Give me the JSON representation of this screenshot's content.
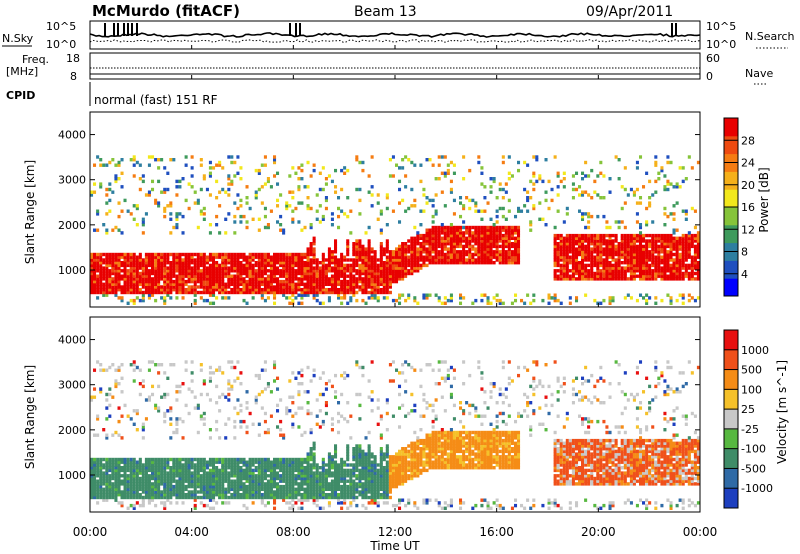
{
  "header": {
    "station": "McMurdo (fitACF)",
    "beam": "Beam 13",
    "date": "09/Apr/2011"
  },
  "top_panels": {
    "nsky_label": "N.Sky",
    "nsearch_label": "N.Search",
    "nsky_ticks": [
      "10^5",
      "10^0"
    ],
    "nsearch_ticks": [
      "10^5",
      "10^0"
    ],
    "freq_label_1": "Freq.",
    "freq_label_2": "[MHz]",
    "freq_ticks": [
      "18",
      "8"
    ],
    "nave_label": "Nave",
    "nave_ticks": [
      "60",
      "0"
    ],
    "cpid_label": "CPID",
    "cpid_value": "normal (fast) 151 RF"
  },
  "chart_data": [
    {
      "type": "heatmap",
      "name": "power",
      "ylabel": "Slant Range [km]",
      "yticks": [
        1000,
        2000,
        3000,
        4000
      ],
      "ylim": [
        180,
        4500
      ],
      "colorbar": {
        "label": "Power [dB]",
        "ticks": [
          "28",
          "24",
          "20",
          "16",
          "12",
          "8",
          "4"
        ],
        "range": [
          0,
          30
        ],
        "colors": [
          "#0000ff",
          "#1f4fbf",
          "#2d7ea0",
          "#3e9a5c",
          "#86c43a",
          "#f2e81c",
          "#f5b01a",
          "#f57c12",
          "#ee4a10",
          "#e80000"
        ]
      }
    },
    {
      "type": "heatmap",
      "name": "velocity",
      "ylabel": "Slant Range [km]",
      "yticks": [
        1000,
        2000,
        3000,
        4000
      ],
      "ylim": [
        180,
        4500
      ],
      "colorbar": {
        "label": "Velocity [m s^-1]",
        "ticks": [
          "1000",
          "500",
          "100",
          "25",
          "-25",
          "-100",
          "-500",
          "-1000"
        ],
        "colors": [
          "#1d3fbf",
          "#2f6aa6",
          "#3f8c68",
          "#57b840",
          "#c8c8c8",
          "#f5c12a",
          "#f58c16",
          "#f0501a",
          "#e81010"
        ]
      }
    }
  ],
  "x_axis": {
    "ticks": [
      "00:00",
      "04:00",
      "08:00",
      "12:00",
      "16:00",
      "20:00",
      "00:00"
    ],
    "label": "Time UT"
  }
}
